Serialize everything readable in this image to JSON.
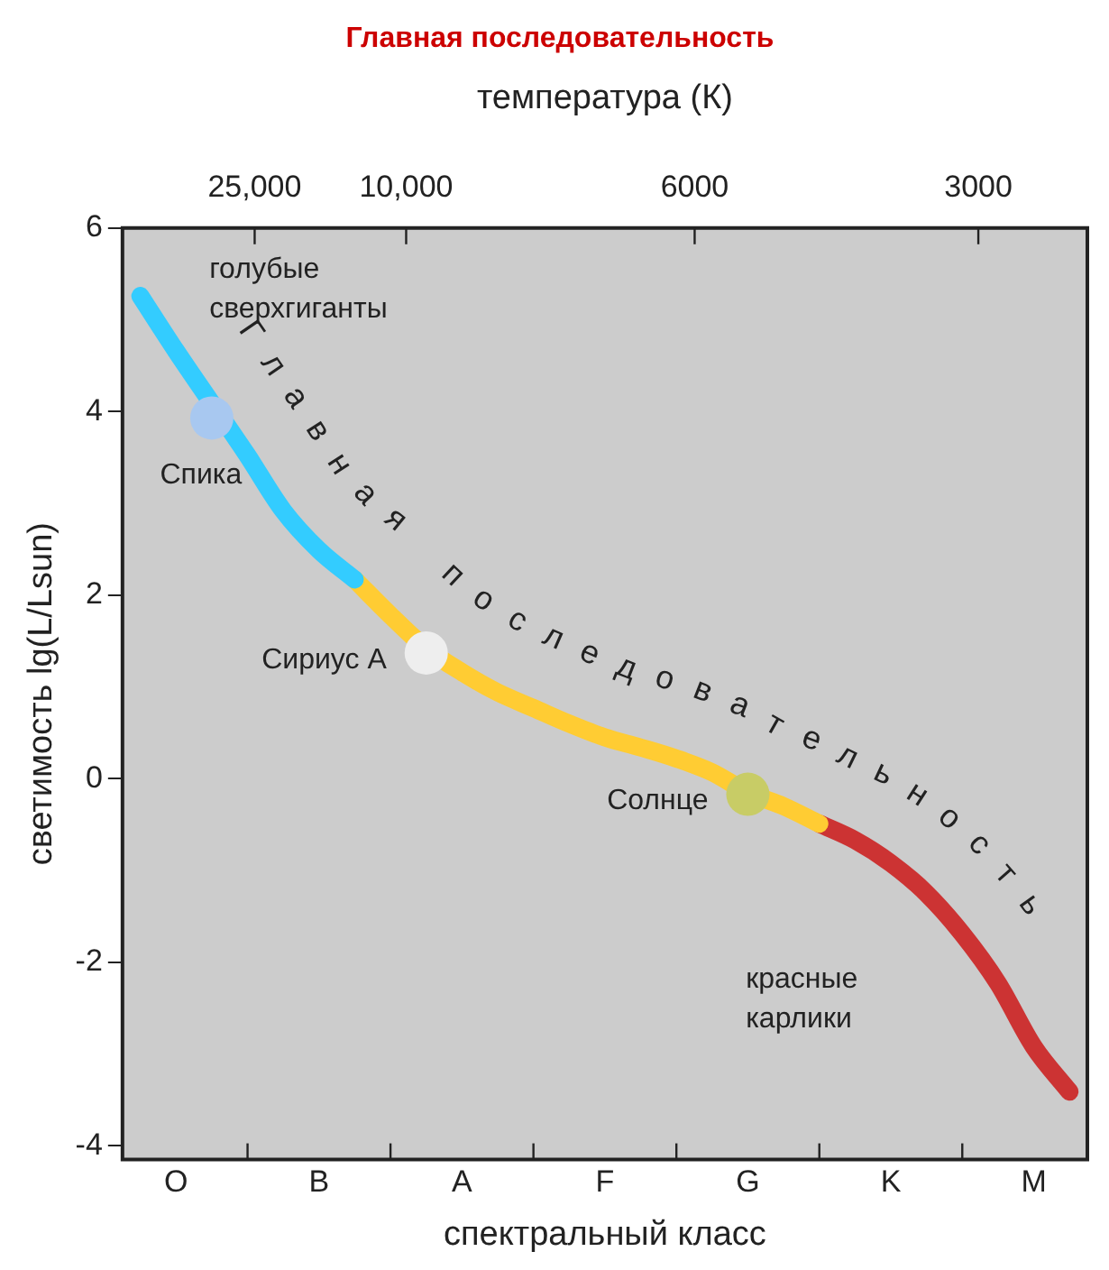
{
  "chart_data": {
    "type": "line",
    "title": "Главная последовательность",
    "x2label": "температура (К)",
    "xlabel": "спектральный класс",
    "ylabel": "светимость lg(L/Lsun)",
    "categories": [
      null,
      "O",
      null,
      null,
      null,
      "B",
      null,
      null,
      null,
      "A",
      null,
      null,
      null,
      "F",
      null,
      null,
      null,
      "G",
      null,
      null,
      null,
      "K",
      null,
      null,
      null,
      "M",
      null
    ],
    "ylim": [
      -4.15,
      6
    ],
    "yticks": [
      -4,
      -2,
      0,
      2,
      4,
      6
    ],
    "grid": false,
    "legend": false,
    "series": [
      {
        "color": "#33ccff",
        "values": [
          5.26,
          4.66,
          null,
          3.52,
          2.92,
          2.49,
          2.17,
          null,
          null,
          null,
          null,
          null,
          null,
          null,
          null,
          null,
          null,
          null,
          null,
          null,
          null,
          null,
          null,
          null,
          null,
          null,
          null
        ]
      },
      {
        "color": "#ffcc33",
        "values": [
          null,
          null,
          null,
          null,
          null,
          null,
          2.17,
          1.78,
          1.42,
          1.16,
          0.94,
          0.77,
          0.6,
          0.45,
          0.34,
          0.22,
          0.07,
          -0.15,
          -0.3,
          -0.49,
          null,
          null,
          null,
          null,
          null,
          null,
          null
        ]
      },
      {
        "color": "#cc3333",
        "values": [
          null,
          null,
          null,
          null,
          null,
          null,
          null,
          null,
          null,
          null,
          null,
          null,
          null,
          null,
          null,
          null,
          null,
          null,
          null,
          -0.49,
          -0.67,
          -0.92,
          -1.25,
          -1.69,
          -2.23,
          -2.92,
          -3.41
        ]
      },
      {
        "type": "scatter",
        "name": "Спика",
        "color": "#a8c8f0",
        "marker": "circle",
        "values": [
          null,
          null,
          3.93,
          null,
          null,
          null,
          null,
          null,
          null,
          null,
          null,
          null,
          null,
          null,
          null,
          null,
          null,
          null,
          null,
          null,
          null,
          null,
          null,
          null,
          null,
          null,
          null
        ]
      },
      {
        "type": "scatter",
        "name": "Сириус А",
        "color": "#eeeeee",
        "marker": "circle",
        "values": [
          null,
          null,
          null,
          null,
          null,
          null,
          null,
          null,
          1.37,
          null,
          null,
          null,
          null,
          null,
          null,
          null,
          null,
          null,
          null,
          null,
          null,
          null,
          null,
          null,
          null,
          null,
          null
        ]
      },
      {
        "type": "scatter",
        "name": "Солнце",
        "color": "#c8cc66",
        "marker": "circle",
        "values": [
          null,
          null,
          null,
          null,
          null,
          null,
          null,
          null,
          null,
          null,
          null,
          null,
          null,
          null,
          null,
          null,
          null,
          -0.17,
          null,
          null,
          null,
          null,
          null,
          null,
          null,
          null,
          null
        ]
      }
    ],
    "annotations": [
      "25,000",
      "10,000",
      "6000",
      "3000",
      "голубые\nсверхгиганты",
      "красные\nкарлики",
      "Главная последовательность"
    ]
  }
}
